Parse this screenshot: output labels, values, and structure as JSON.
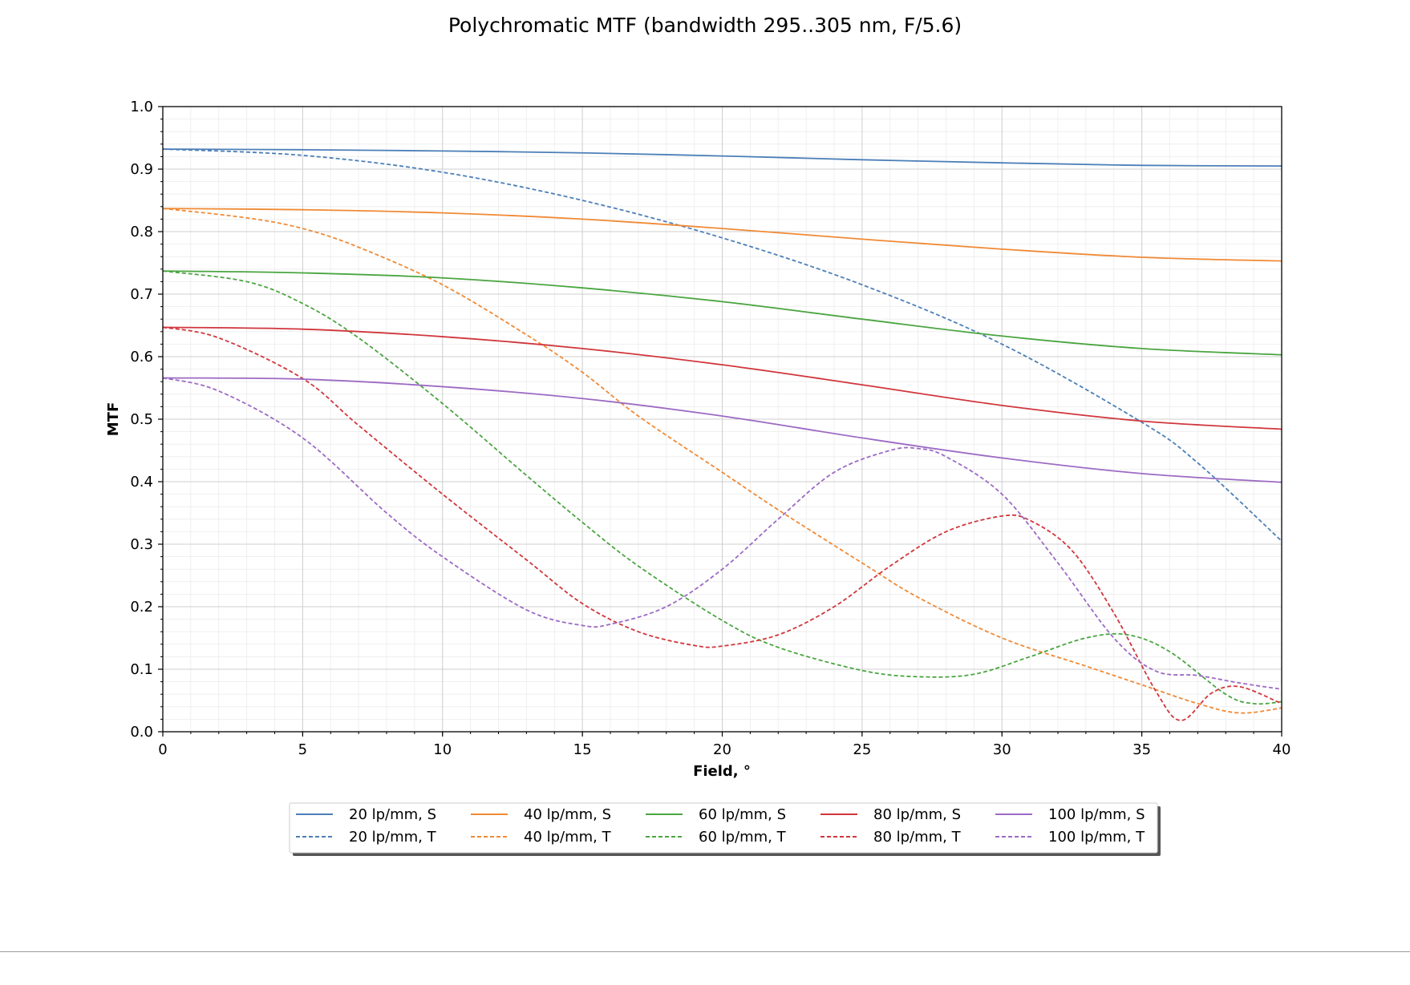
{
  "chart_data": {
    "type": "line",
    "title": "Polychromatic MTF (bandwidth 295..305 nm, F/5.6)",
    "xlabel": "Field, °",
    "ylabel": "MTF",
    "xlim": [
      0,
      40
    ],
    "ylim": [
      0,
      1.0
    ],
    "x_ticks": [
      "0",
      "5",
      "10",
      "15",
      "20",
      "25",
      "30",
      "35",
      "40"
    ],
    "y_ticks": [
      "0.0",
      "0.1",
      "0.2",
      "0.3",
      "0.4",
      "0.5",
      "0.6",
      "0.7",
      "0.8",
      "0.9",
      "1.0"
    ],
    "grid": true,
    "minor_grid": true,
    "legend_position": "bottom-center",
    "legend_columns": 5,
    "series": [
      {
        "name": "20 lp/mm, S",
        "color": "#4c7fb8",
        "style": "solid",
        "points": [
          [
            0,
            0.932
          ],
          [
            5,
            0.931
          ],
          [
            10,
            0.929
          ],
          [
            15,
            0.926
          ],
          [
            20,
            0.921
          ],
          [
            25,
            0.915
          ],
          [
            30,
            0.91
          ],
          [
            35,
            0.906
          ],
          [
            40,
            0.905
          ]
        ]
      },
      {
        "name": "20 lp/mm, T",
        "color": "#4c7fb8",
        "style": "dashed",
        "points": [
          [
            0,
            0.932
          ],
          [
            5,
            0.922
          ],
          [
            10,
            0.895
          ],
          [
            15,
            0.85
          ],
          [
            20,
            0.79
          ],
          [
            25,
            0.715
          ],
          [
            30,
            0.62
          ],
          [
            35,
            0.495
          ],
          [
            37,
            0.43
          ],
          [
            40,
            0.305
          ]
        ]
      },
      {
        "name": "40 lp/mm, S",
        "color": "#f08a35",
        "style": "solid",
        "points": [
          [
            0,
            0.837
          ],
          [
            5,
            0.835
          ],
          [
            10,
            0.83
          ],
          [
            15,
            0.82
          ],
          [
            20,
            0.805
          ],
          [
            25,
            0.788
          ],
          [
            30,
            0.772
          ],
          [
            35,
            0.759
          ],
          [
            40,
            0.753
          ]
        ]
      },
      {
        "name": "40 lp/mm, T",
        "color": "#f08a35",
        "style": "dashed",
        "points": [
          [
            0,
            0.837
          ],
          [
            3,
            0.822
          ],
          [
            5,
            0.805
          ],
          [
            7,
            0.775
          ],
          [
            10,
            0.715
          ],
          [
            13,
            0.635
          ],
          [
            15,
            0.575
          ],
          [
            17,
            0.505
          ],
          [
            20,
            0.415
          ],
          [
            22,
            0.355
          ],
          [
            25,
            0.27
          ],
          [
            27,
            0.215
          ],
          [
            30,
            0.15
          ],
          [
            33,
            0.105
          ],
          [
            35,
            0.075
          ],
          [
            37,
            0.045
          ],
          [
            38.5,
            0.03
          ],
          [
            40,
            0.038
          ]
        ]
      },
      {
        "name": "60 lp/mm, S",
        "color": "#4aa540",
        "style": "solid",
        "points": [
          [
            0,
            0.737
          ],
          [
            5,
            0.734
          ],
          [
            10,
            0.726
          ],
          [
            15,
            0.71
          ],
          [
            20,
            0.688
          ],
          [
            25,
            0.66
          ],
          [
            30,
            0.633
          ],
          [
            35,
            0.613
          ],
          [
            40,
            0.603
          ]
        ]
      },
      {
        "name": "60 lp/mm, T",
        "color": "#4aa540",
        "style": "dashed",
        "points": [
          [
            0,
            0.737
          ],
          [
            3,
            0.72
          ],
          [
            5,
            0.685
          ],
          [
            7,
            0.63
          ],
          [
            10,
            0.525
          ],
          [
            13,
            0.41
          ],
          [
            15,
            0.335
          ],
          [
            17,
            0.265
          ],
          [
            20,
            0.178
          ],
          [
            22,
            0.135
          ],
          [
            25,
            0.098
          ],
          [
            27,
            0.088
          ],
          [
            29,
            0.092
          ],
          [
            31,
            0.12
          ],
          [
            33,
            0.15
          ],
          [
            34.5,
            0.155
          ],
          [
            36,
            0.128
          ],
          [
            38,
            0.06
          ],
          [
            39,
            0.045
          ],
          [
            40,
            0.048
          ]
        ]
      },
      {
        "name": "80 lp/mm, S",
        "color": "#d0363c",
        "style": "solid",
        "points": [
          [
            0,
            0.647
          ],
          [
            5,
            0.644
          ],
          [
            10,
            0.632
          ],
          [
            15,
            0.613
          ],
          [
            20,
            0.587
          ],
          [
            25,
            0.555
          ],
          [
            30,
            0.522
          ],
          [
            35,
            0.497
          ],
          [
            40,
            0.484
          ]
        ]
      },
      {
        "name": "80 lp/mm, T",
        "color": "#d0363c",
        "style": "dashed",
        "points": [
          [
            0,
            0.647
          ],
          [
            2,
            0.63
          ],
          [
            5,
            0.565
          ],
          [
            7,
            0.49
          ],
          [
            10,
            0.38
          ],
          [
            13,
            0.275
          ],
          [
            15,
            0.205
          ],
          [
            17,
            0.16
          ],
          [
            19,
            0.138
          ],
          [
            20,
            0.137
          ],
          [
            22,
            0.155
          ],
          [
            24,
            0.2
          ],
          [
            26,
            0.265
          ],
          [
            28,
            0.32
          ],
          [
            30,
            0.345
          ],
          [
            31,
            0.338
          ],
          [
            32.5,
            0.29
          ],
          [
            34,
            0.19
          ],
          [
            35.5,
            0.065
          ],
          [
            36.4,
            0.018
          ],
          [
            37.5,
            0.062
          ],
          [
            38.5,
            0.072
          ],
          [
            40,
            0.045
          ]
        ]
      },
      {
        "name": "100 lp/mm, S",
        "color": "#9c6ac4",
        "style": "solid",
        "points": [
          [
            0,
            0.566
          ],
          [
            5,
            0.564
          ],
          [
            10,
            0.552
          ],
          [
            15,
            0.533
          ],
          [
            20,
            0.505
          ],
          [
            25,
            0.47
          ],
          [
            30,
            0.438
          ],
          [
            35,
            0.413
          ],
          [
            40,
            0.399
          ]
        ]
      },
      {
        "name": "100 lp/mm, T",
        "color": "#9c6ac4",
        "style": "dashed",
        "points": [
          [
            0,
            0.566
          ],
          [
            2,
            0.545
          ],
          [
            5,
            0.47
          ],
          [
            8,
            0.35
          ],
          [
            10,
            0.28
          ],
          [
            13,
            0.195
          ],
          [
            15,
            0.17
          ],
          [
            16,
            0.172
          ],
          [
            18,
            0.2
          ],
          [
            20,
            0.26
          ],
          [
            22,
            0.34
          ],
          [
            24,
            0.415
          ],
          [
            26,
            0.45
          ],
          [
            27,
            0.453
          ],
          [
            28,
            0.44
          ],
          [
            30,
            0.38
          ],
          [
            32,
            0.27
          ],
          [
            34,
            0.15
          ],
          [
            35.5,
            0.097
          ],
          [
            37,
            0.09
          ],
          [
            38.5,
            0.078
          ],
          [
            40,
            0.068
          ]
        ]
      }
    ]
  }
}
